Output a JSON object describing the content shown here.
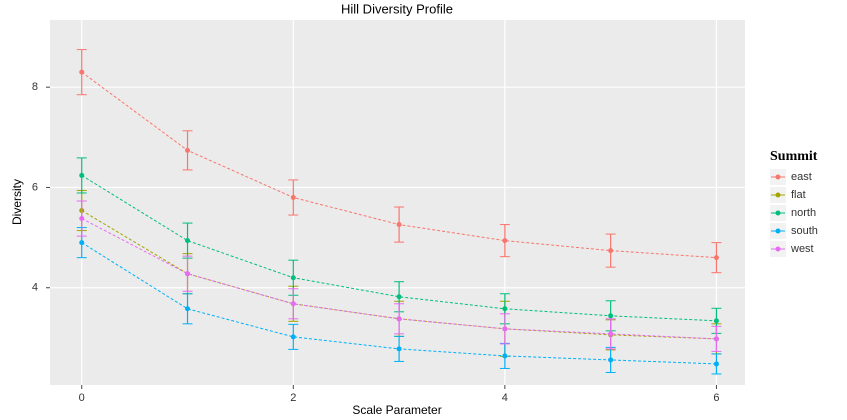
{
  "chart_data": {
    "type": "line",
    "title": "Hill Diversity Profile",
    "x_label": "Scale Parameter",
    "y_label": "Diversity",
    "legend_title": "Summit",
    "x": [
      0,
      1,
      2,
      3,
      4,
      5,
      6
    ],
    "xlim": [
      -0.3,
      6.27
    ],
    "ylim": [
      2.06,
      9.34
    ],
    "xticks": [
      0,
      2,
      4,
      6
    ],
    "yticks": [
      4,
      6,
      8
    ],
    "grid": true,
    "legend": "right",
    "series": [
      {
        "name": "east",
        "color": "#F8766D",
        "values": [
          8.3,
          6.74,
          5.8,
          5.26,
          4.94,
          4.74,
          4.6
        ],
        "errors": [
          0.45,
          0.39,
          0.35,
          0.35,
          0.32,
          0.33,
          0.3
        ]
      },
      {
        "name": "flat",
        "color": "#A3A500",
        "values": [
          5.54,
          4.28,
          3.68,
          3.38,
          3.18,
          3.06,
          2.98
        ],
        "errors": [
          0.4,
          0.4,
          0.35,
          0.35,
          0.55,
          0.3,
          0.3
        ]
      },
      {
        "name": "north",
        "color": "#00BF7D",
        "values": [
          6.24,
          4.94,
          4.2,
          3.82,
          3.58,
          3.44,
          3.34
        ],
        "errors": [
          0.35,
          0.35,
          0.35,
          0.3,
          0.3,
          0.3,
          0.25
        ]
      },
      {
        "name": "south",
        "color": "#00B0F6",
        "values": [
          4.9,
          3.58,
          3.02,
          2.78,
          2.64,
          2.56,
          2.48
        ],
        "errors": [
          0.3,
          0.3,
          0.25,
          0.25,
          0.25,
          0.25,
          0.2
        ]
      },
      {
        "name": "west",
        "color": "#E76BF3",
        "values": [
          5.38,
          4.28,
          3.68,
          3.38,
          3.18,
          3.08,
          2.98
        ],
        "errors": [
          0.35,
          0.35,
          0.3,
          0.3,
          0.3,
          0.3,
          0.25
        ]
      }
    ]
  }
}
